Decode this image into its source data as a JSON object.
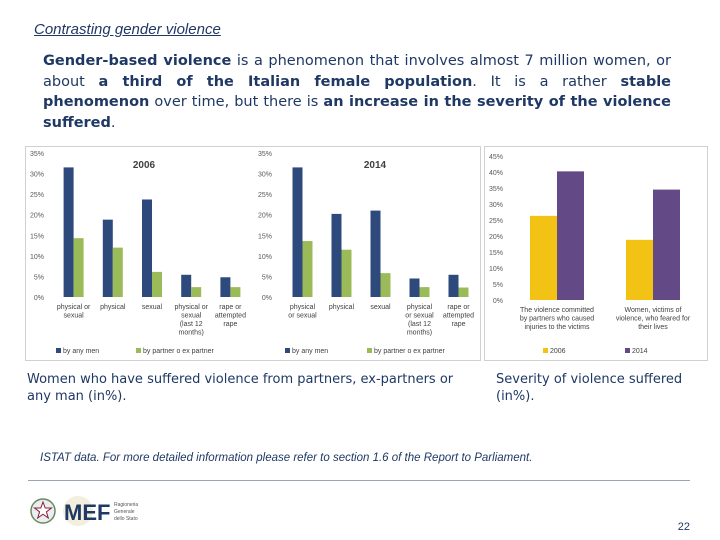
{
  "page": {
    "title": "Contrasting gender violence",
    "intro": {
      "p1": "Gender-based violence",
      "p2": " is a phenomenon that involves almost 7 million women, or about ",
      "p3": "a third of the Italian female population",
      "p4": ". It is a rather ",
      "p5": "stable phenomenon",
      "p6": " over time, but there is ",
      "p7": "an increase in the severity of the violence suffered",
      "p8": "."
    },
    "caption_left": "Women who have suffered violence from partners, ex-partners or any man (in%).",
    "caption_right": "Severity of violence suffered (in%).",
    "source": "ISTAT data. For more detailed information please refer to section 1.6 of the Report to Parliament.",
    "logo_text": "MEF",
    "logo_sub": [
      "Ragioneria",
      "Generale",
      "dello Stato"
    ],
    "page_number": "22"
  },
  "colors": {
    "blue": "#2e4a7d",
    "green": "#9bbb59",
    "yellow": "#f2c314",
    "purple": "#634a86",
    "text": "#1f3864"
  },
  "chart_data": [
    {
      "type": "bar",
      "title": "2006",
      "categories": [
        "physical or sexual",
        "physical",
        "sexual",
        "physical or sexual (last 12 months)",
        "rape or attempted rape"
      ],
      "series": [
        {
          "name": "by any men",
          "values": [
            31.5,
            18.8,
            23.7,
            5.4,
            4.8
          ]
        },
        {
          "name": "by partner o ex partner",
          "values": [
            14.3,
            12.0,
            6.1,
            2.4,
            2.4
          ]
        }
      ],
      "ylim": [
        0,
        35
      ],
      "yticks": [
        "0%",
        "5%",
        "10%",
        "15%",
        "20%",
        "25%",
        "30%",
        "35%"
      ]
    },
    {
      "type": "bar",
      "title": "2014",
      "categories": [
        "physical or sexual",
        "physical",
        "sexual",
        "physical or sexual (last 12 months)",
        "rape or attempted rape"
      ],
      "series": [
        {
          "name": "by any men",
          "values": [
            31.5,
            20.2,
            21.0,
            4.5,
            5.4
          ]
        },
        {
          "name": "by partner o ex partner",
          "values": [
            13.6,
            11.5,
            5.8,
            2.4,
            2.3
          ]
        }
      ],
      "ylim": [
        0,
        35
      ],
      "yticks": [
        "0%",
        "5%",
        "10%",
        "15%",
        "20%",
        "25%",
        "30%",
        "35%"
      ]
    },
    {
      "type": "bar",
      "categories": [
        "The violence committed by partners who caused injuries to the victims",
        "Women, victims of violence, who feared for their lives"
      ],
      "series": [
        {
          "name": "2006",
          "values": [
            26.3,
            18.8
          ]
        },
        {
          "name": "2014",
          "values": [
            40.2,
            34.5
          ]
        }
      ],
      "ylim": [
        0,
        45
      ],
      "yticks": [
        "0%",
        "5%",
        "10%",
        "15%",
        "20%",
        "25%",
        "30%",
        "35%",
        "40%",
        "45%"
      ]
    }
  ]
}
